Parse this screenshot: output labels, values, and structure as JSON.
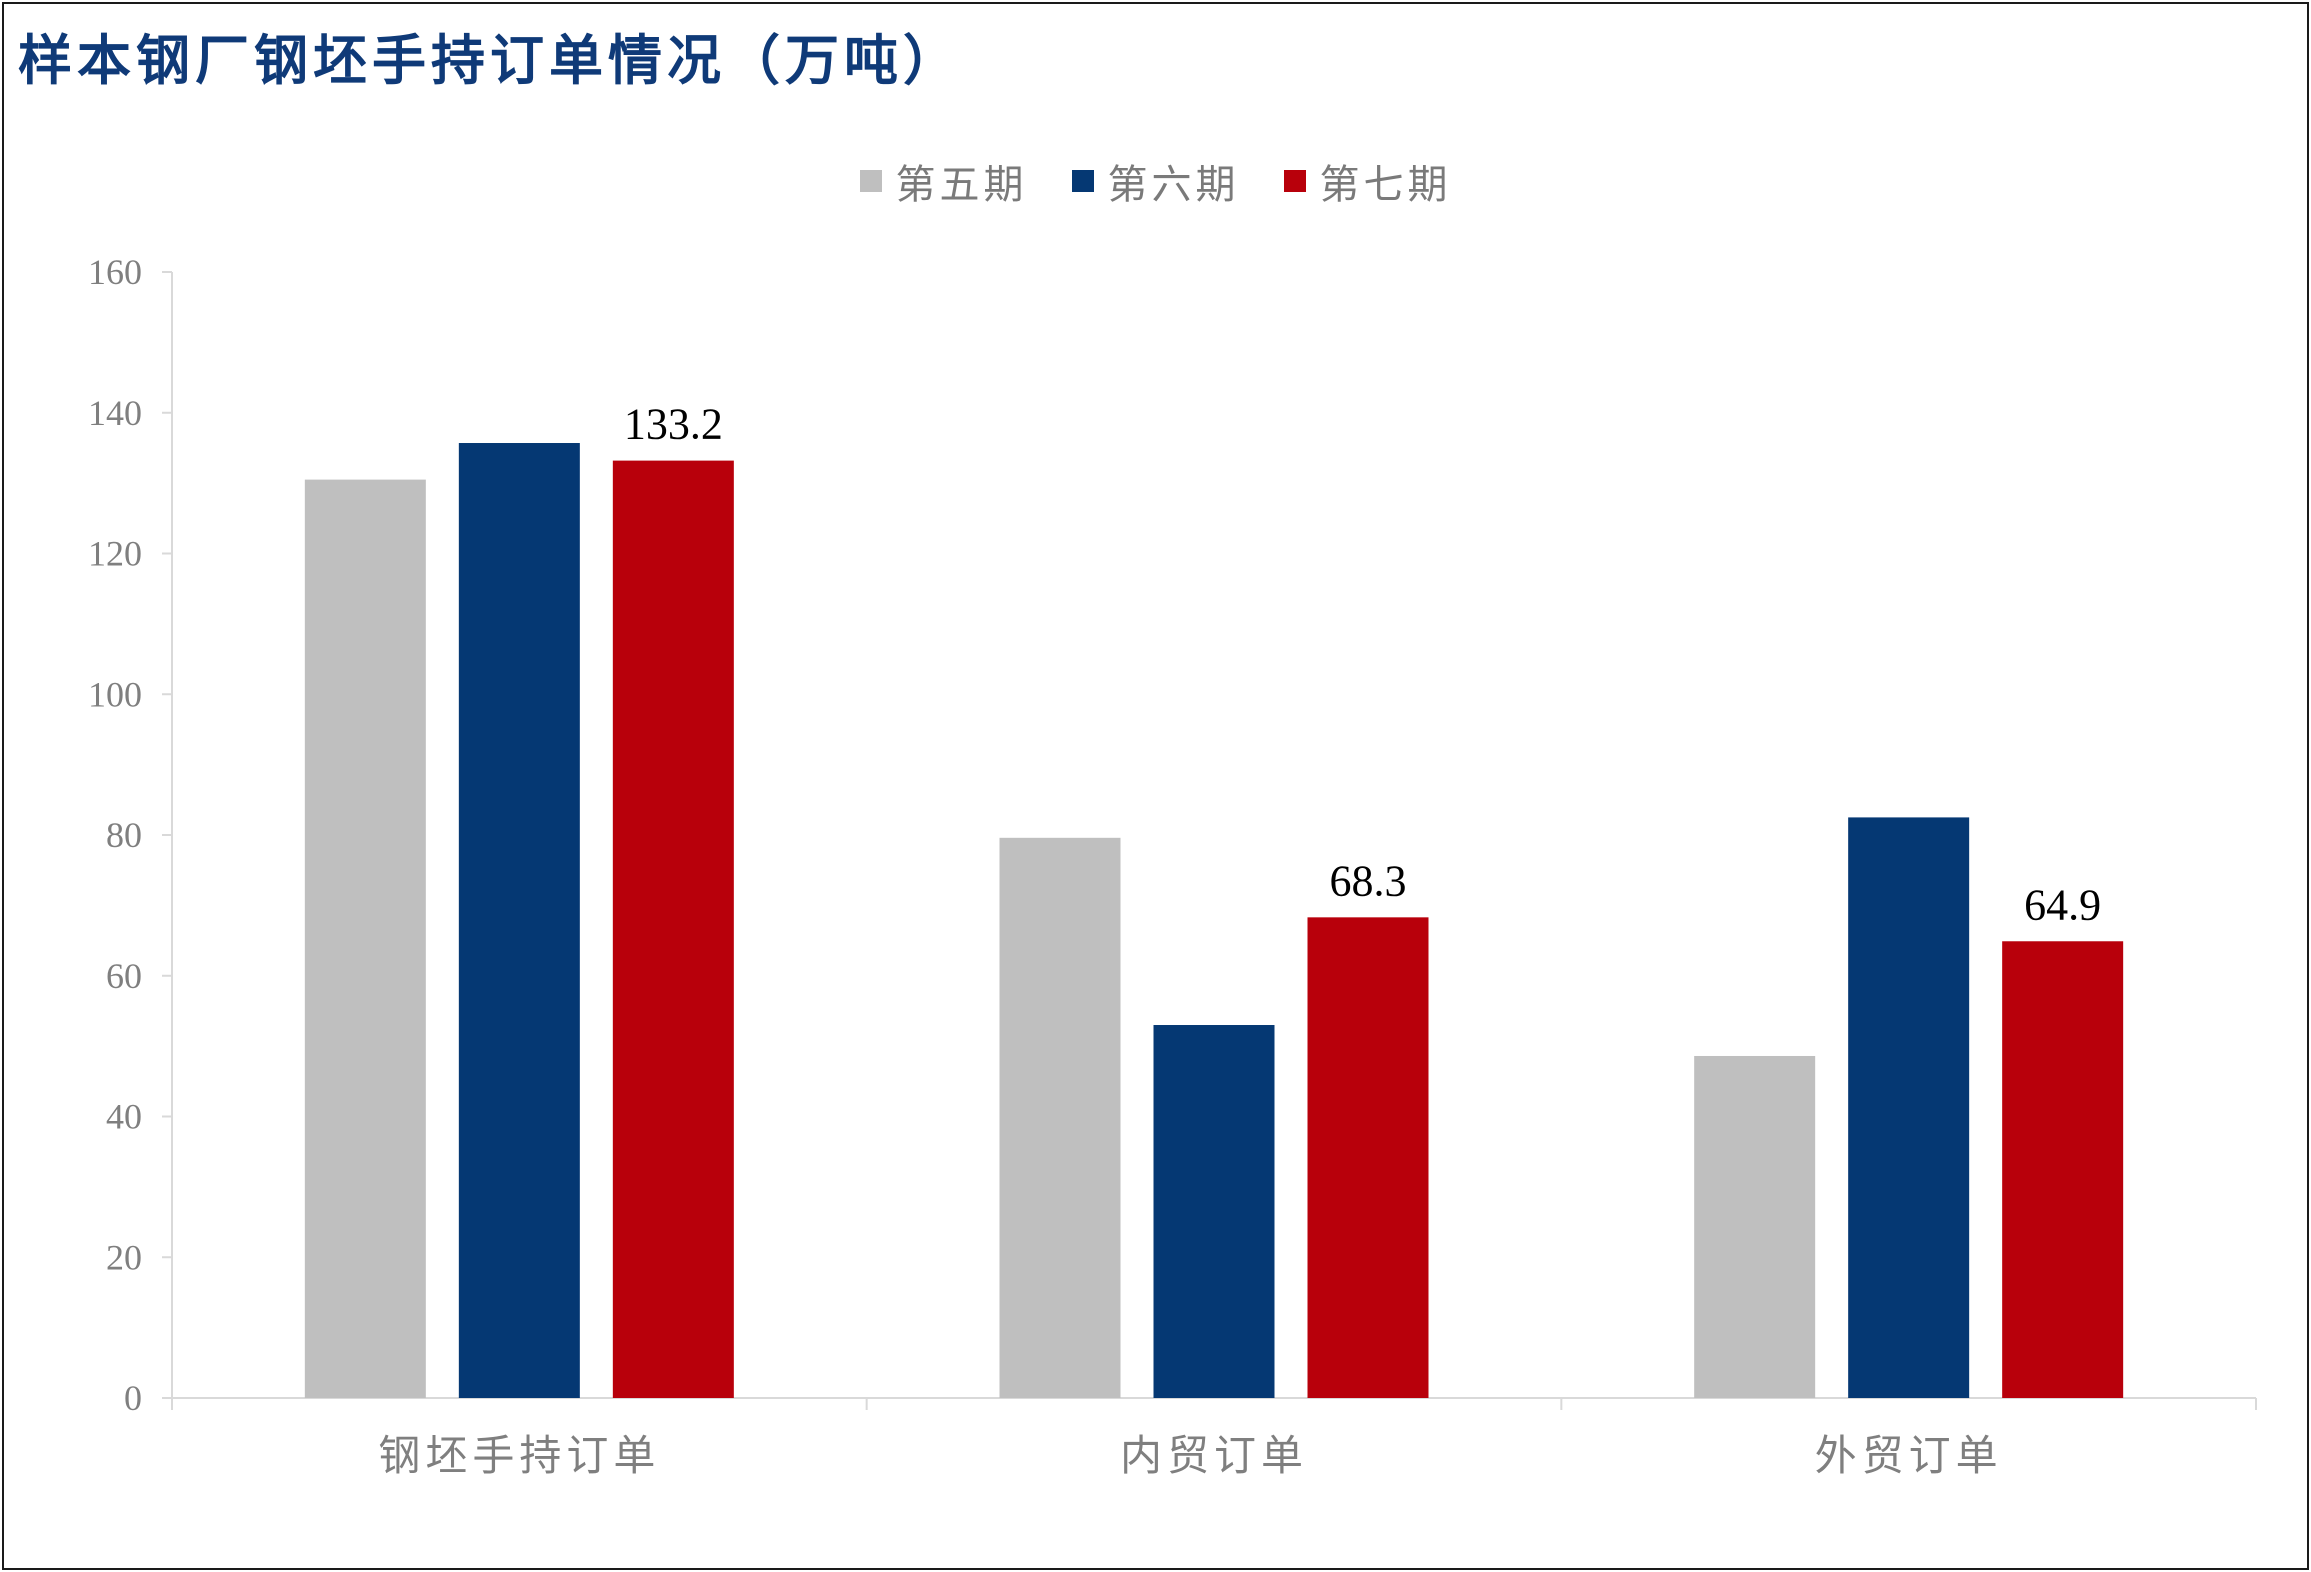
{
  "chart_data": {
    "type": "bar",
    "title": "样本钢厂钢坯手持订单情况（万吨）",
    "categories": [
      "钢坯手持订单",
      "内贸订单",
      "外贸订单"
    ],
    "series": [
      {
        "name": "第五期",
        "color": "#bfbfbf",
        "values": [
          130.5,
          79.6,
          48.6
        ]
      },
      {
        "name": "第六期",
        "color": "#053873",
        "values": [
          135.7,
          53.0,
          82.5
        ]
      },
      {
        "name": "第七期",
        "color": "#b8000b",
        "values": [
          133.2,
          68.3,
          64.9
        ]
      }
    ],
    "data_labels": {
      "series": "第七期",
      "values": [
        "133.2",
        "68.3",
        "64.9"
      ]
    },
    "ylim": [
      0,
      160
    ],
    "yticks": [
      "0",
      "20",
      "40",
      "60",
      "80",
      "100",
      "120",
      "140",
      "160"
    ],
    "xlabel": "",
    "ylabel": "",
    "legend": "top-center",
    "grid": false
  }
}
